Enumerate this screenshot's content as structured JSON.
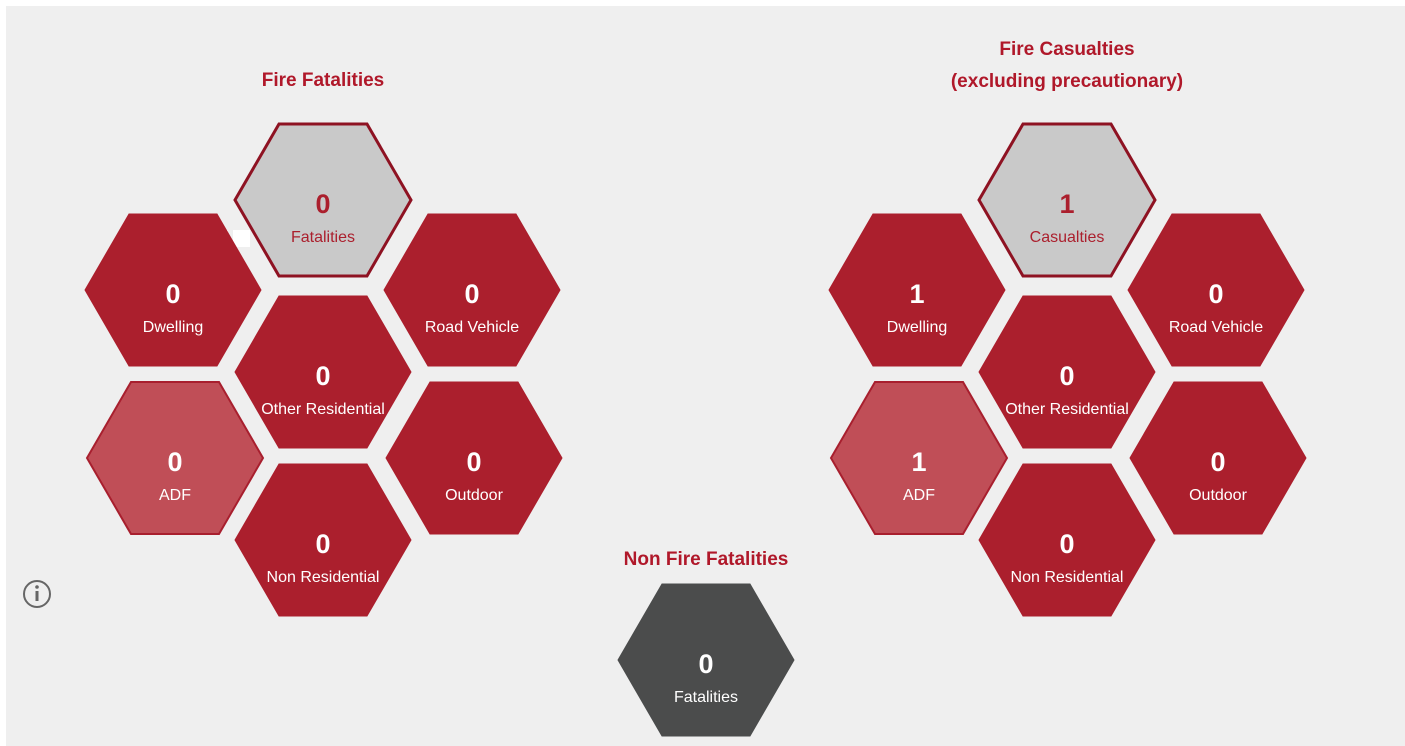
{
  "fire_fatalities": {
    "title": [
      "Fire Fatalities"
    ],
    "hexes": [
      {
        "value": "0",
        "label": "Fatalities"
      },
      {
        "value": "0",
        "label": "Dwelling"
      },
      {
        "value": "0",
        "label": "Road Vehicle"
      },
      {
        "value": "0",
        "label": "Other Residential"
      },
      {
        "value": "0",
        "label": "ADF"
      },
      {
        "value": "0",
        "label": "Outdoor"
      },
      {
        "value": "0",
        "label": "Non Residential"
      }
    ]
  },
  "fire_casualties": {
    "title": [
      "Fire Casualties",
      "(excluding precautionary)"
    ],
    "hexes": [
      {
        "value": "1",
        "label": "Casualties"
      },
      {
        "value": "1",
        "label": "Dwelling"
      },
      {
        "value": "0",
        "label": "Road Vehicle"
      },
      {
        "value": "0",
        "label": "Other Residential"
      },
      {
        "value": "1",
        "label": "ADF"
      },
      {
        "value": "0",
        "label": "Outdoor"
      },
      {
        "value": "0",
        "label": "Non Residential"
      }
    ]
  },
  "non_fire_fatalities": {
    "title": [
      "Non Fire Fatalities"
    ],
    "hexes": [
      {
        "value": "0",
        "label": "Fatalities"
      }
    ]
  }
}
